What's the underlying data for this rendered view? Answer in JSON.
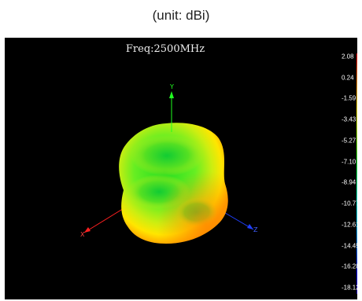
{
  "caption": "(unit: dBi)",
  "plot": {
    "title": "Freq:2500MHz",
    "axes": {
      "x_label": "X",
      "y_label": "Y",
      "z_label": "Z"
    },
    "colors": {
      "background": "#000000",
      "x_axis": "#ff2020",
      "y_axis": "#20ff20",
      "z_axis": "#2040ff",
      "surface_high": "#ff9900",
      "surface_mid": "#ffee00",
      "surface_low": "#22dd22"
    }
  },
  "colorbar": {
    "ticks": [
      "2.08",
      "0.24",
      "-1.59",
      "-3.43",
      "-5.27",
      "-7.10",
      "-8.94",
      "-10.77",
      "-12.61",
      "-14.45",
      "-16.28",
      "-18.12"
    ]
  }
}
